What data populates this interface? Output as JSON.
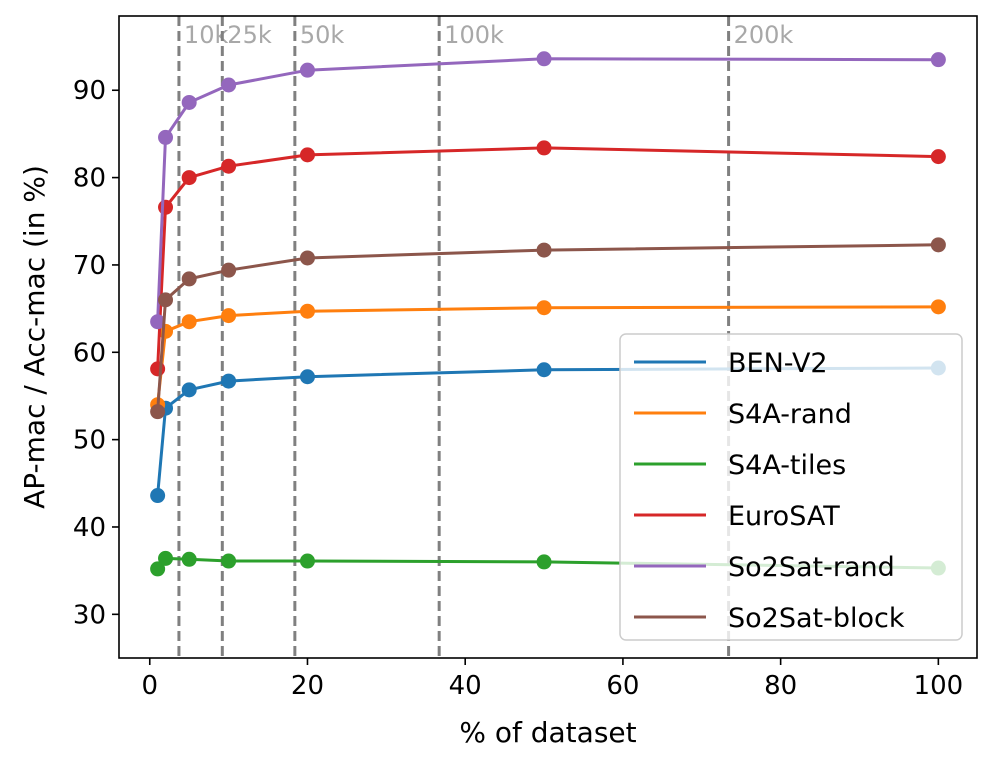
{
  "chart_data": {
    "type": "line",
    "xlabel": "% of dataset",
    "ylabel": "AP-mac / Acc-mac (in %)",
    "xlim": [
      -3.9,
      104.9
    ],
    "ylim": [
      25,
      98.5
    ],
    "x_ticks": [
      0,
      20,
      40,
      60,
      80,
      100
    ],
    "y_ticks": [
      30,
      40,
      50,
      60,
      70,
      80,
      90
    ],
    "grid": false,
    "legend_position": "bottom-right",
    "x": [
      1,
      2,
      5,
      10,
      20,
      50,
      100
    ],
    "series": [
      {
        "name": "BEN-V2",
        "color": "#1f77b4",
        "values": [
          43.6,
          53.6,
          55.7,
          56.7,
          57.2,
          58.0,
          58.2
        ]
      },
      {
        "name": "S4A-rand",
        "color": "#ff7f0e",
        "values": [
          54.0,
          62.4,
          63.5,
          64.2,
          64.7,
          65.1,
          65.2
        ]
      },
      {
        "name": "S4A-tiles",
        "color": "#2ca02c",
        "values": [
          35.2,
          36.4,
          36.3,
          36.1,
          36.1,
          36.0,
          35.3
        ]
      },
      {
        "name": "EuroSAT",
        "color": "#d62728",
        "values": [
          58.1,
          76.6,
          80.0,
          81.3,
          82.6,
          83.4,
          82.4
        ]
      },
      {
        "name": "So2Sat-rand",
        "color": "#9467bd",
        "values": [
          63.5,
          84.6,
          88.6,
          90.6,
          92.3,
          93.6,
          93.5
        ]
      },
      {
        "name": "So2Sat-block",
        "color": "#8c564b",
        "values": [
          53.2,
          66.0,
          68.4,
          69.4,
          70.8,
          71.7,
          72.3
        ]
      }
    ],
    "vertical_lines": [
      {
        "x": 3.7,
        "label": "10k"
      },
      {
        "x": 9.2,
        "label": "25k"
      },
      {
        "x": 18.4,
        "label": "50k"
      },
      {
        "x": 36.7,
        "label": "100k"
      },
      {
        "x": 73.4,
        "label": "200k"
      }
    ]
  }
}
